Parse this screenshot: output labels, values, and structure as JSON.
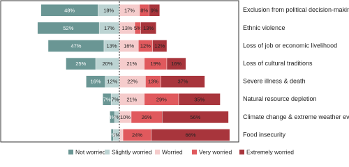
{
  "chart_data": {
    "type": "diverging_bar",
    "categories": [
      "Exclusion from political decision-making",
      "Ethnic violence",
      "Loss of job or economic livelihood",
      "Loss of cultural traditions",
      "Severe illness & death",
      "Natural resource depletion",
      "Climate change & extreme weather events",
      "Food insecurity"
    ],
    "xlim": [
      -100,
      100
    ],
    "series": [
      {
        "name": "Not worried",
        "color": "#6a9694",
        "side": "left",
        "values": [
          48,
          52,
          47,
          25,
          16,
          7,
          4,
          2
        ],
        "value_labels": [
          "48%",
          "52%",
          "47%",
          "25%",
          "16%",
          "7%",
          "4%",
          "2%"
        ]
      },
      {
        "name": "Slightly worried",
        "color": "#bcd3d2",
        "side": "left",
        "values": [
          18,
          17,
          13,
          20,
          12,
          7,
          4,
          5
        ],
        "value_labels": [
          "18%",
          "17%",
          "13%",
          "20%",
          "12%",
          "7%",
          "4%",
          "5%"
        ]
      },
      {
        "name": "Worried",
        "color": "#f5cccc",
        "side": "right",
        "values": [
          17,
          13,
          16,
          21,
          22,
          21,
          10,
          3
        ],
        "value_labels": [
          "17%",
          "13%",
          "16%",
          "21%",
          "22%",
          "21%",
          "10%",
          null
        ]
      },
      {
        "name": "Very worried",
        "color": "#e0595d",
        "side": "right",
        "values": [
          8,
          5,
          12,
          19,
          13,
          29,
          26,
          24
        ],
        "value_labels": [
          "8%",
          "5%",
          "12%",
          "19%",
          "13%",
          "29%",
          "26%",
          "24%"
        ]
      },
      {
        "name": "Extremely worried",
        "color": "#a8353c",
        "side": "right",
        "values": [
          9,
          13,
          12,
          16,
          37,
          35,
          56,
          66
        ],
        "value_labels": [
          "9%",
          "13%",
          "12%",
          "16%",
          "37%",
          "35%",
          "56%",
          "66%"
        ]
      }
    ]
  }
}
